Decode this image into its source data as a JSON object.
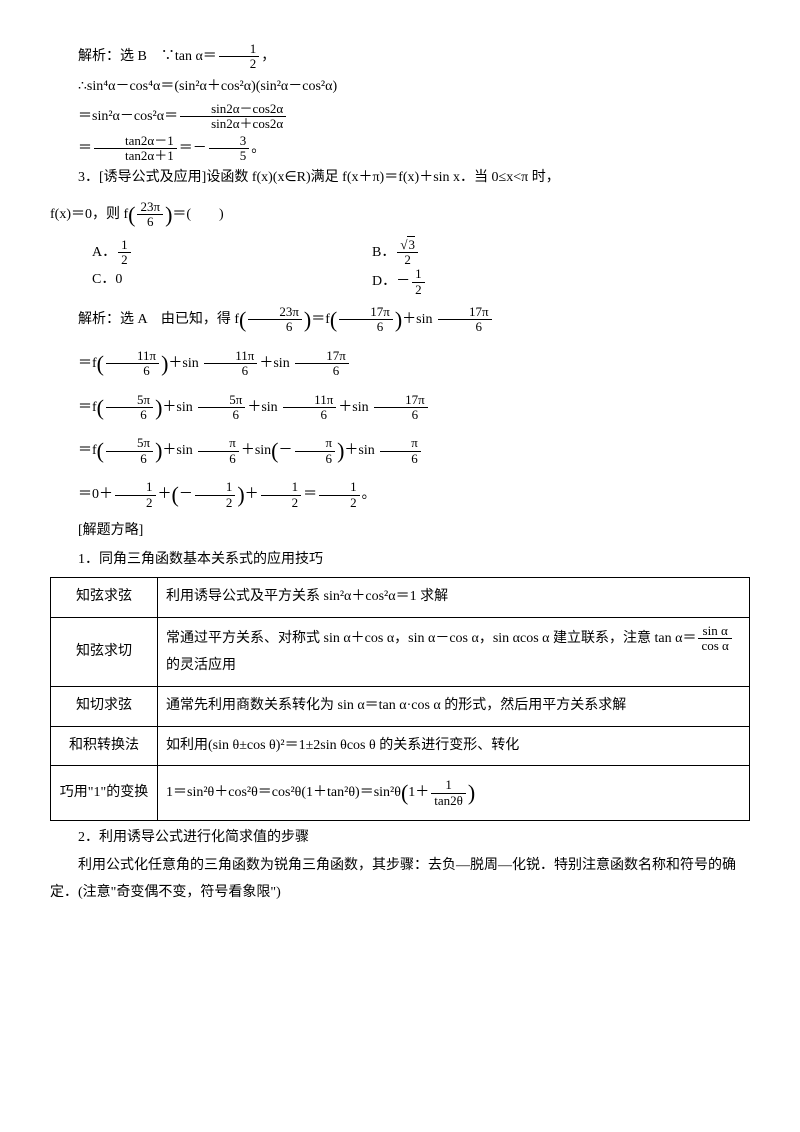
{
  "p1": "解析：选 B　∵tan α＝",
  "frac1": {
    "num": "1",
    "den": "2"
  },
  "p1b": "，",
  "p2": "∴sin⁴α－cos⁴α＝(sin²α＋cos²α)(sin²α－cos²α)",
  "p3": "＝sin²α－cos²α＝",
  "frac2": {
    "num": "sin2α－cos2α",
    "den": "sin2α＋cos2α"
  },
  "p4": "＝",
  "frac3": {
    "num": "tan2α－1",
    "den": "tan2α＋1"
  },
  "p4b": "＝－",
  "frac4": {
    "num": "3",
    "den": "5"
  },
  "p4c": "。",
  "q3": "3．[诱导公式及应用]设函数 f(x)(x∈R)满足 f(x＋π)＝f(x)＋sin x．当 0≤x<π 时，",
  "q3b": "f(x)＝0，则 f",
  "frac_23_6": {
    "num": "23π",
    "den": "6"
  },
  "q3c": "＝(　　)",
  "optA": "A．",
  "fracA": {
    "num": "1",
    "den": "2"
  },
  "optB": "B．",
  "fracB": {
    "num": "√3",
    "den": "2"
  },
  "optC": "C．0",
  "optD": "D．－",
  "fracD": {
    "num": "1",
    "den": "2"
  },
  "sol1": "解析：选 A　由已知，得 f",
  "sol1b": "＝f",
  "frac_17_6": {
    "num": "17π",
    "den": "6"
  },
  "sol1c": "＋sin ",
  "sol2": "＝f",
  "frac_11_6": {
    "num": "11π",
    "den": "6"
  },
  "sol2b": "＋sin ",
  "sol2c": "＋sin ",
  "sol3": "＝f",
  "frac_5_6": {
    "num": "5π",
    "den": "6"
  },
  "sol3b": "＋sin ",
  "sol3c": "＋sin ",
  "sol3d": "＋sin ",
  "sol4": "＝f",
  "frac_pi_6": {
    "num": "π",
    "den": "6"
  },
  "sol4b": "＋sin ",
  "sol4c": "＋sin",
  "sol4d": "＋sin ",
  "sol5": "＝0＋",
  "frac_half": {
    "num": "1",
    "den": "2"
  },
  "sol5b": "＋",
  "sol5c": "＋",
  "sol5d": "＝",
  "sol5e": "。",
  "method_title": "[解题方略]",
  "sec1": "1．同角三角函数基本关系式的应用技巧",
  "t1": {
    "r1": {
      "label": "知弦求弦",
      "content": "利用诱导公式及平方关系 sin²α＋cos²α＝1 求解"
    },
    "r2": {
      "label": "知弦求切",
      "content_a": "常通过平方关系、对称式 sin α＋cos α，sin α－cos α，sin αcos α 建立联系，注意 tan α＝",
      "content_b": "的灵活应用",
      "frac": {
        "num": "sin α",
        "den": "cos α"
      }
    },
    "r3": {
      "label": "知切求弦",
      "content": "通常先利用商数关系转化为 sin α＝tan α·cos α 的形式，然后用平方关系求解"
    },
    "r4": {
      "label": "和积转换法",
      "content": "如利用(sin θ±cos θ)²＝1±2sin θcos θ 的关系进行变形、转化"
    },
    "r5": {
      "label": "巧用\"1\"的变换",
      "content_a": "1＝sin²θ＋cos²θ＝cos²θ(1＋tan²θ)＝sin²θ",
      "content_b": "",
      "frac": {
        "num": "1",
        "den": "tan2θ"
      }
    }
  },
  "sec2": "2．利用诱导公式进行化简求值的步骤",
  "sec2_p": "利用公式化任意角的三角函数为锐角三角函数，其步骤：去负—脱周—化锐．特别注意函数名称和符号的确定．(注意\"奇变偶不变，符号看象限\")"
}
